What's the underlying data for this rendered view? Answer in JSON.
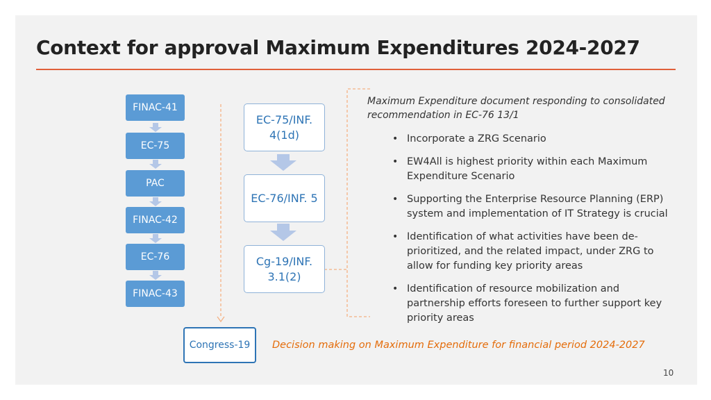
{
  "slide": {
    "title": "Context for approval Maximum Expenditures 2024-2027",
    "page_number": "10"
  },
  "left_flow": [
    "FINAC-41",
    "EC-75",
    "PAC",
    "FINAC-42",
    "EC-76",
    "FINAC-43"
  ],
  "middle_flow": [
    {
      "line1": "EC-75/INF.",
      "line2": "4(1d)"
    },
    {
      "line1": "EC-76/INF. 5",
      "line2": ""
    },
    {
      "line1": "Cg-19/INF.",
      "line2": "3.1(2)"
    }
  ],
  "note": {
    "heading": "Maximum Expenditure document responding to consolidated recommendation in EC-76 13/1",
    "bullets": [
      "Incorporate a ZRG Scenario",
      "EW4All is highest priority within each Maximum Expenditure Scenario",
      "Supporting the Enterprise Resource Planning (ERP) system and implementation of IT Strategy is crucial",
      "Identification of what activities have been de-prioritized, and the related impact, under ZRG to allow for funding key priority areas",
      "Identification of resource mobilization and partnership efforts foreseen to further support key priority areas"
    ]
  },
  "congress": {
    "label": "Congress-19",
    "decision": "Decision making on Maximum Expenditure for financial period 2024-2027"
  },
  "colors": {
    "accent_rule": "#e0603a",
    "box_fill": "#5b9bd5",
    "arrow_fill": "#b4c7e7",
    "middle_text": "#2e74b5",
    "decision_text": "#e46c0a",
    "dashed_line": "#f4b183"
  }
}
